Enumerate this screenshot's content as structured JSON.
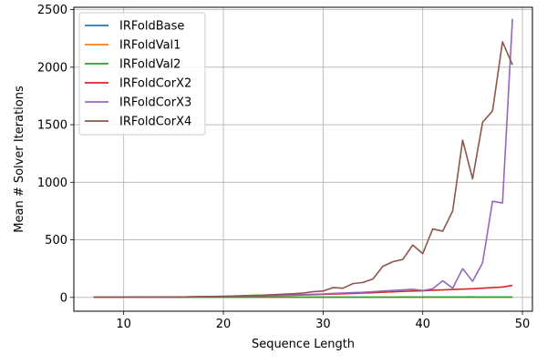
{
  "chart_data": {
    "type": "line",
    "title": "",
    "xlabel": "Sequence Length",
    "ylabel": "Mean # Solver Iterations",
    "xlim": [
      5,
      51
    ],
    "ylim": [
      -120,
      2520
    ],
    "xticks": [
      10,
      20,
      30,
      40,
      50
    ],
    "yticks": [
      0,
      500,
      1000,
      1500,
      2000,
      2500
    ],
    "grid": true,
    "legend_position": "top-left",
    "series": [
      {
        "name": "IRFoldBase",
        "color": "#1f77b4",
        "x": [
          7,
          8,
          9,
          10,
          11,
          12,
          13,
          14,
          15,
          16,
          17,
          18,
          19,
          20,
          21,
          22,
          23,
          24,
          25,
          26,
          27,
          28,
          29,
          30,
          31,
          32,
          33,
          34,
          35,
          36,
          37,
          38,
          39,
          40,
          41,
          42,
          43,
          44,
          45,
          46,
          47,
          48,
          49
        ],
        "y": [
          1,
          1,
          1,
          1,
          1,
          1,
          1,
          1,
          1,
          1,
          1,
          1,
          1,
          1,
          1,
          1,
          1,
          1,
          1,
          1,
          1,
          1,
          1,
          1,
          1,
          1,
          1,
          1,
          1,
          1,
          1,
          1,
          1,
          1,
          1,
          1,
          1,
          1,
          1,
          1,
          1,
          1,
          1
        ]
      },
      {
        "name": "IRFoldVal1",
        "color": "#ff7f0e",
        "x": [
          7,
          8,
          9,
          10,
          11,
          12,
          13,
          14,
          15,
          16,
          17,
          18,
          19,
          20,
          21,
          22,
          23,
          24,
          25,
          26,
          27,
          28,
          29,
          30,
          31,
          32,
          33,
          34,
          35,
          36,
          37,
          38,
          39,
          40,
          41,
          42,
          43,
          44,
          45,
          46,
          47,
          48,
          49
        ],
        "y": [
          1,
          1,
          1,
          1,
          1,
          1,
          1,
          1,
          1,
          1,
          1,
          1,
          1,
          1,
          1,
          1,
          1,
          1,
          1,
          1,
          1,
          1,
          1,
          1,
          1,
          1,
          1,
          1,
          1,
          1,
          1,
          1,
          1,
          1,
          1,
          1,
          1,
          1,
          1,
          1,
          1,
          1,
          1
        ]
      },
      {
        "name": "IRFoldVal2",
        "color": "#2ca02c",
        "x": [
          7,
          8,
          9,
          10,
          11,
          12,
          13,
          14,
          15,
          16,
          17,
          18,
          19,
          20,
          21,
          22,
          23,
          24,
          25,
          26,
          27,
          28,
          29,
          30,
          31,
          32,
          33,
          34,
          35,
          36,
          37,
          38,
          39,
          40,
          41,
          42,
          43,
          44,
          45,
          46,
          47,
          48,
          49
        ],
        "y": [
          1,
          1,
          1,
          1,
          1,
          1,
          1,
          1,
          1,
          1,
          1,
          1,
          1,
          1,
          1,
          1,
          2,
          2,
          2,
          2,
          2,
          2,
          2,
          2,
          2,
          2,
          2,
          2,
          2,
          2,
          2,
          3,
          3,
          3,
          3,
          3,
          3,
          3,
          4,
          2,
          3,
          3,
          3
        ]
      },
      {
        "name": "IRFoldCorX2",
        "color": "#d62728",
        "x": [
          7,
          8,
          9,
          10,
          11,
          12,
          13,
          14,
          15,
          16,
          17,
          18,
          19,
          20,
          21,
          22,
          23,
          24,
          25,
          26,
          27,
          28,
          29,
          30,
          31,
          32,
          33,
          34,
          35,
          36,
          37,
          38,
          39,
          40,
          41,
          42,
          43,
          44,
          45,
          46,
          47,
          48,
          49
        ],
        "y": [
          1,
          1,
          1,
          1,
          2,
          2,
          2,
          3,
          3,
          4,
          5,
          6,
          7,
          8,
          9,
          11,
          12,
          14,
          16,
          18,
          19,
          22,
          24,
          27,
          30,
          32,
          35,
          38,
          40,
          45,
          48,
          52,
          55,
          57,
          62,
          65,
          68,
          72,
          75,
          80,
          85,
          90,
          105
        ]
      },
      {
        "name": "IRFoldCorX3",
        "color": "#9467bd",
        "x": [
          7,
          8,
          9,
          10,
          11,
          12,
          13,
          14,
          15,
          16,
          17,
          18,
          19,
          20,
          21,
          22,
          23,
          24,
          25,
          26,
          27,
          28,
          29,
          30,
          31,
          32,
          33,
          34,
          35,
          36,
          37,
          38,
          39,
          40,
          41,
          42,
          43,
          44,
          45,
          46,
          47,
          48,
          49
        ],
        "y": [
          1,
          1,
          1,
          1,
          2,
          2,
          2,
          3,
          3,
          4,
          5,
          6,
          7,
          8,
          10,
          12,
          14,
          16,
          18,
          20,
          22,
          25,
          28,
          30,
          35,
          38,
          42,
          45,
          50,
          55,
          60,
          65,
          70,
          60,
          75,
          145,
          80,
          250,
          140,
          300,
          835,
          820,
          2420
        ]
      },
      {
        "name": "IRFoldCorX4",
        "color": "#8c564b",
        "x": [
          7,
          8,
          9,
          10,
          11,
          12,
          13,
          14,
          15,
          16,
          17,
          18,
          19,
          20,
          21,
          22,
          23,
          24,
          25,
          26,
          27,
          28,
          29,
          30,
          31,
          32,
          33,
          34,
          35,
          36,
          37,
          38,
          39,
          40,
          41,
          42,
          43,
          44,
          45,
          46,
          47,
          48,
          49
        ],
        "y": [
          1,
          1,
          1,
          2,
          2,
          2,
          3,
          3,
          3,
          4,
          5,
          7,
          8,
          10,
          12,
          15,
          18,
          20,
          24,
          28,
          32,
          38,
          50,
          55,
          85,
          80,
          120,
          130,
          160,
          270,
          310,
          330,
          455,
          380,
          595,
          575,
          750,
          1365,
          1030,
          1520,
          1620,
          2220,
          2020
        ]
      }
    ]
  }
}
